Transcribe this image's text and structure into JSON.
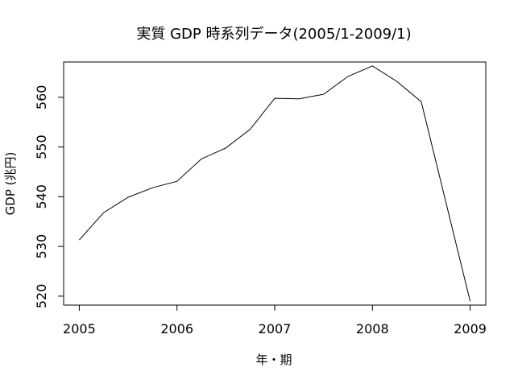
{
  "chart_data": {
    "type": "line",
    "title": "実質 GDP 時系列データ(2005/1-2009/1)",
    "xlabel": "年・期",
    "ylabel": "GDP (兆円)",
    "x": [
      2005.0,
      2005.25,
      2005.5,
      2005.75,
      2006.0,
      2006.25,
      2006.5,
      2006.75,
      2007.0,
      2007.25,
      2007.5,
      2007.75,
      2008.0,
      2008.25,
      2008.5,
      2008.75,
      2009.0
    ],
    "series": [
      {
        "values": [
          531.3,
          536.8,
          539.9,
          541.8,
          543.1,
          547.6,
          549.8,
          553.6,
          559.8,
          559.7,
          560.6,
          564.2,
          566.3,
          563.2,
          559.1,
          539.0,
          519.0
        ]
      }
    ],
    "xlim": [
      2004.84,
      2009.16
    ],
    "ylim": [
      518.2,
      567.1
    ],
    "xticks": [
      2005,
      2006,
      2007,
      2008,
      2009
    ],
    "xtick_labels": [
      "2005",
      "2006",
      "2007",
      "2008",
      "2009"
    ],
    "yticks": [
      520,
      530,
      540,
      550,
      560
    ],
    "ytick_labels": [
      "520",
      "530",
      "540",
      "550",
      "560"
    ],
    "grid": false,
    "line_color": "#000000"
  }
}
